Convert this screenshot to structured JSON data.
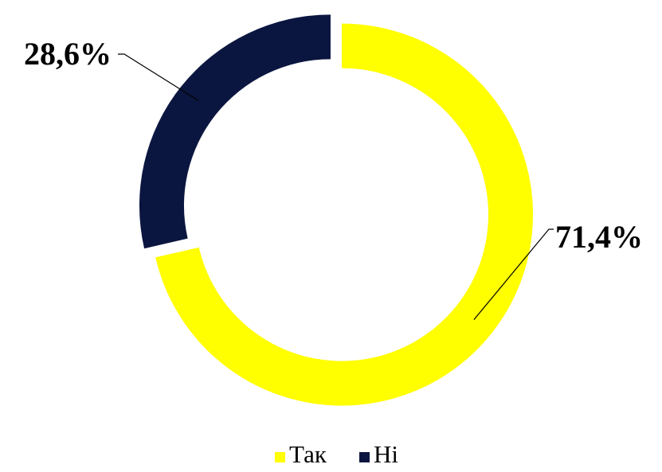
{
  "chart_data": {
    "type": "pie",
    "subtype": "doughnut",
    "categories": [
      "Так",
      "Ні"
    ],
    "values": [
      71.4,
      28.6
    ],
    "data_labels": [
      "71,4%",
      "28,6%"
    ],
    "colors": [
      "#FFFF00",
      "#0B1640"
    ],
    "legend": {
      "position": "bottom",
      "entries": [
        "Так",
        "Ні"
      ]
    },
    "title": ""
  }
}
